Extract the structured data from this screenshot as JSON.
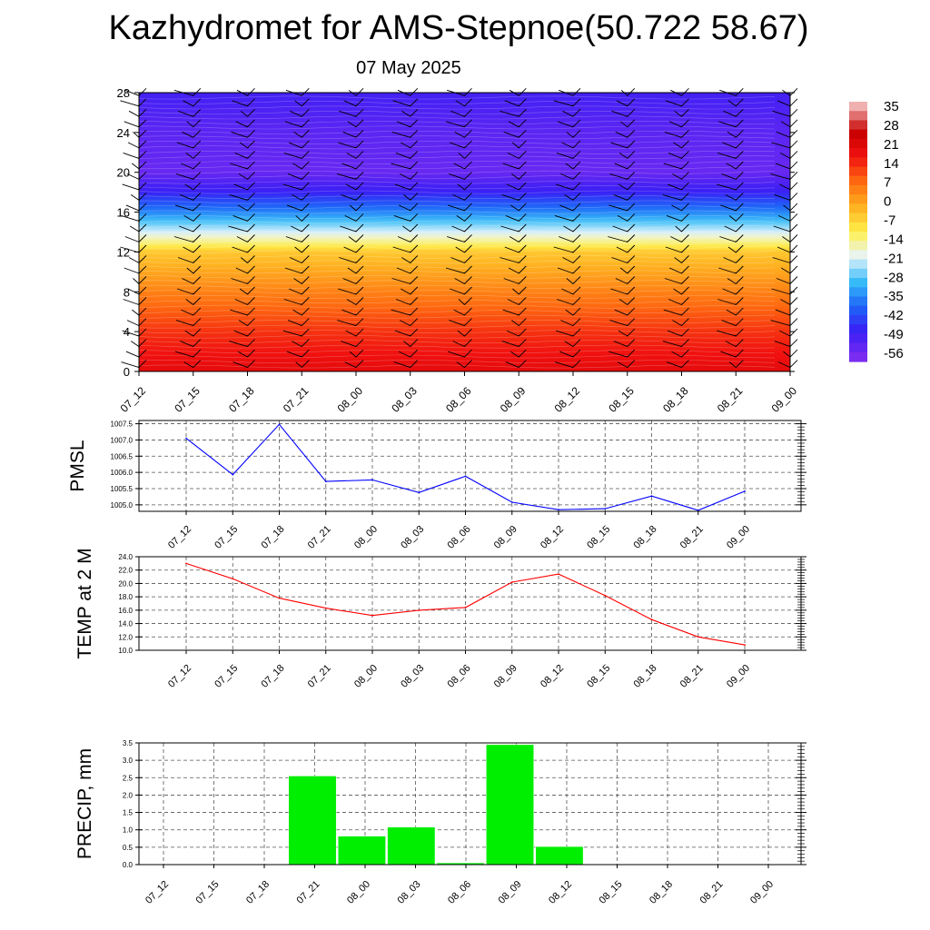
{
  "header": {
    "title": "Kazhydromet for AMS-Stepnoe(50.722 58.67)",
    "date": "07 May 2025"
  },
  "time_labels": [
    "07_12",
    "07_15",
    "07_18",
    "07_21",
    "08_00",
    "08_03",
    "08_06",
    "08_09",
    "08_12",
    "08_15",
    "08_18",
    "08_21",
    "09_00"
  ],
  "chart_data": [
    {
      "type": "heatmap",
      "panel": "cross-section",
      "x_categories": [
        "07_12",
        "07_15",
        "07_18",
        "07_21",
        "08_00",
        "08_03",
        "08_06",
        "08_09",
        "08_12",
        "08_15",
        "08_18",
        "08_21",
        "09_00"
      ],
      "y_ticks": [
        0,
        4,
        8,
        12,
        16,
        20,
        24,
        28
      ],
      "ylim": [
        0,
        28
      ],
      "colorbar_ticks": [
        35,
        28,
        21,
        14,
        7,
        0,
        -7,
        -14,
        -21,
        -28,
        -35,
        -42,
        -49,
        -56
      ],
      "colormap": [
        "#7a2cf0",
        "#3a1ef5",
        "#1e64f8",
        "#38bdf8",
        "#e8f4fa",
        "#fff04a",
        "#ffb020",
        "#ff6a10",
        "#f01010",
        "#c80000",
        "#f0b0b0"
      ],
      "temperature_profile": [
        {
          "level": 0,
          "value": 24
        },
        {
          "level": 4,
          "value": 17
        },
        {
          "level": 8,
          "value": 7
        },
        {
          "level": 12,
          "value": -4
        },
        {
          "level": 13,
          "value": -14
        },
        {
          "level": 16,
          "value": -38
        },
        {
          "level": 18,
          "value": -52
        },
        {
          "level": 20,
          "value": -60
        },
        {
          "level": 24,
          "value": -58
        },
        {
          "level": 28,
          "value": -54
        }
      ],
      "grid": false
    },
    {
      "type": "line",
      "ylabel": "PMSL",
      "categories": [
        "07_12",
        "07_15",
        "07_18",
        "07_21",
        "08_00",
        "08_03",
        "08_06",
        "08_09",
        "08_12",
        "08_15",
        "08_18",
        "08_21",
        "09_00"
      ],
      "series": [
        {
          "values": [
            1007.05,
            1005.93,
            1007.48,
            1005.72,
            1005.77,
            1005.38,
            1005.88,
            1005.08,
            1004.85,
            1004.88,
            1005.27,
            1004.83,
            1005.42
          ],
          "color": "#0000ff"
        }
      ],
      "y_ticks": [
        "1005.0",
        "1005.5",
        "1006.0",
        "1006.5",
        "1007.0",
        "1007.5"
      ],
      "ylim": [
        1004.8,
        1007.6
      ],
      "grid": true
    },
    {
      "type": "line",
      "ylabel": "TEMP at 2 M",
      "categories": [
        "07_12",
        "07_15",
        "07_18",
        "07_21",
        "08_00",
        "08_03",
        "08_06",
        "08_09",
        "08_12",
        "08_15",
        "08_18",
        "08_21",
        "09_00"
      ],
      "series": [
        {
          "values": [
            23.0,
            20.7,
            17.8,
            16.3,
            15.2,
            16.0,
            16.4,
            20.2,
            21.4,
            18.2,
            14.6,
            12.0,
            10.8
          ],
          "color": "#ff0000"
        }
      ],
      "y_ticks": [
        "10.0",
        "12.0",
        "14.0",
        "16.0",
        "18.0",
        "20.0",
        "22.0",
        "24.0"
      ],
      "ylim": [
        10,
        24
      ],
      "grid": true
    },
    {
      "type": "bar",
      "ylabel": "PRECIP, mm",
      "categories": [
        "07_12",
        "07_15",
        "07_18",
        "07_21",
        "08_00",
        "08_03",
        "08_06",
        "08_09",
        "08_12",
        "08_15",
        "08_18",
        "08_21",
        "09_00"
      ],
      "values": [
        0,
        0,
        2.55,
        0.82,
        1.08,
        0.05,
        3.45,
        0.52,
        0,
        0,
        0,
        0,
        0
      ],
      "y_ticks": [
        "0.0",
        "0.5",
        "1.0",
        "1.5",
        "2.0",
        "2.5",
        "3.0",
        "3.5"
      ],
      "ylim": [
        0,
        3.5
      ],
      "bar_color": "#00ee00",
      "grid": true
    }
  ]
}
